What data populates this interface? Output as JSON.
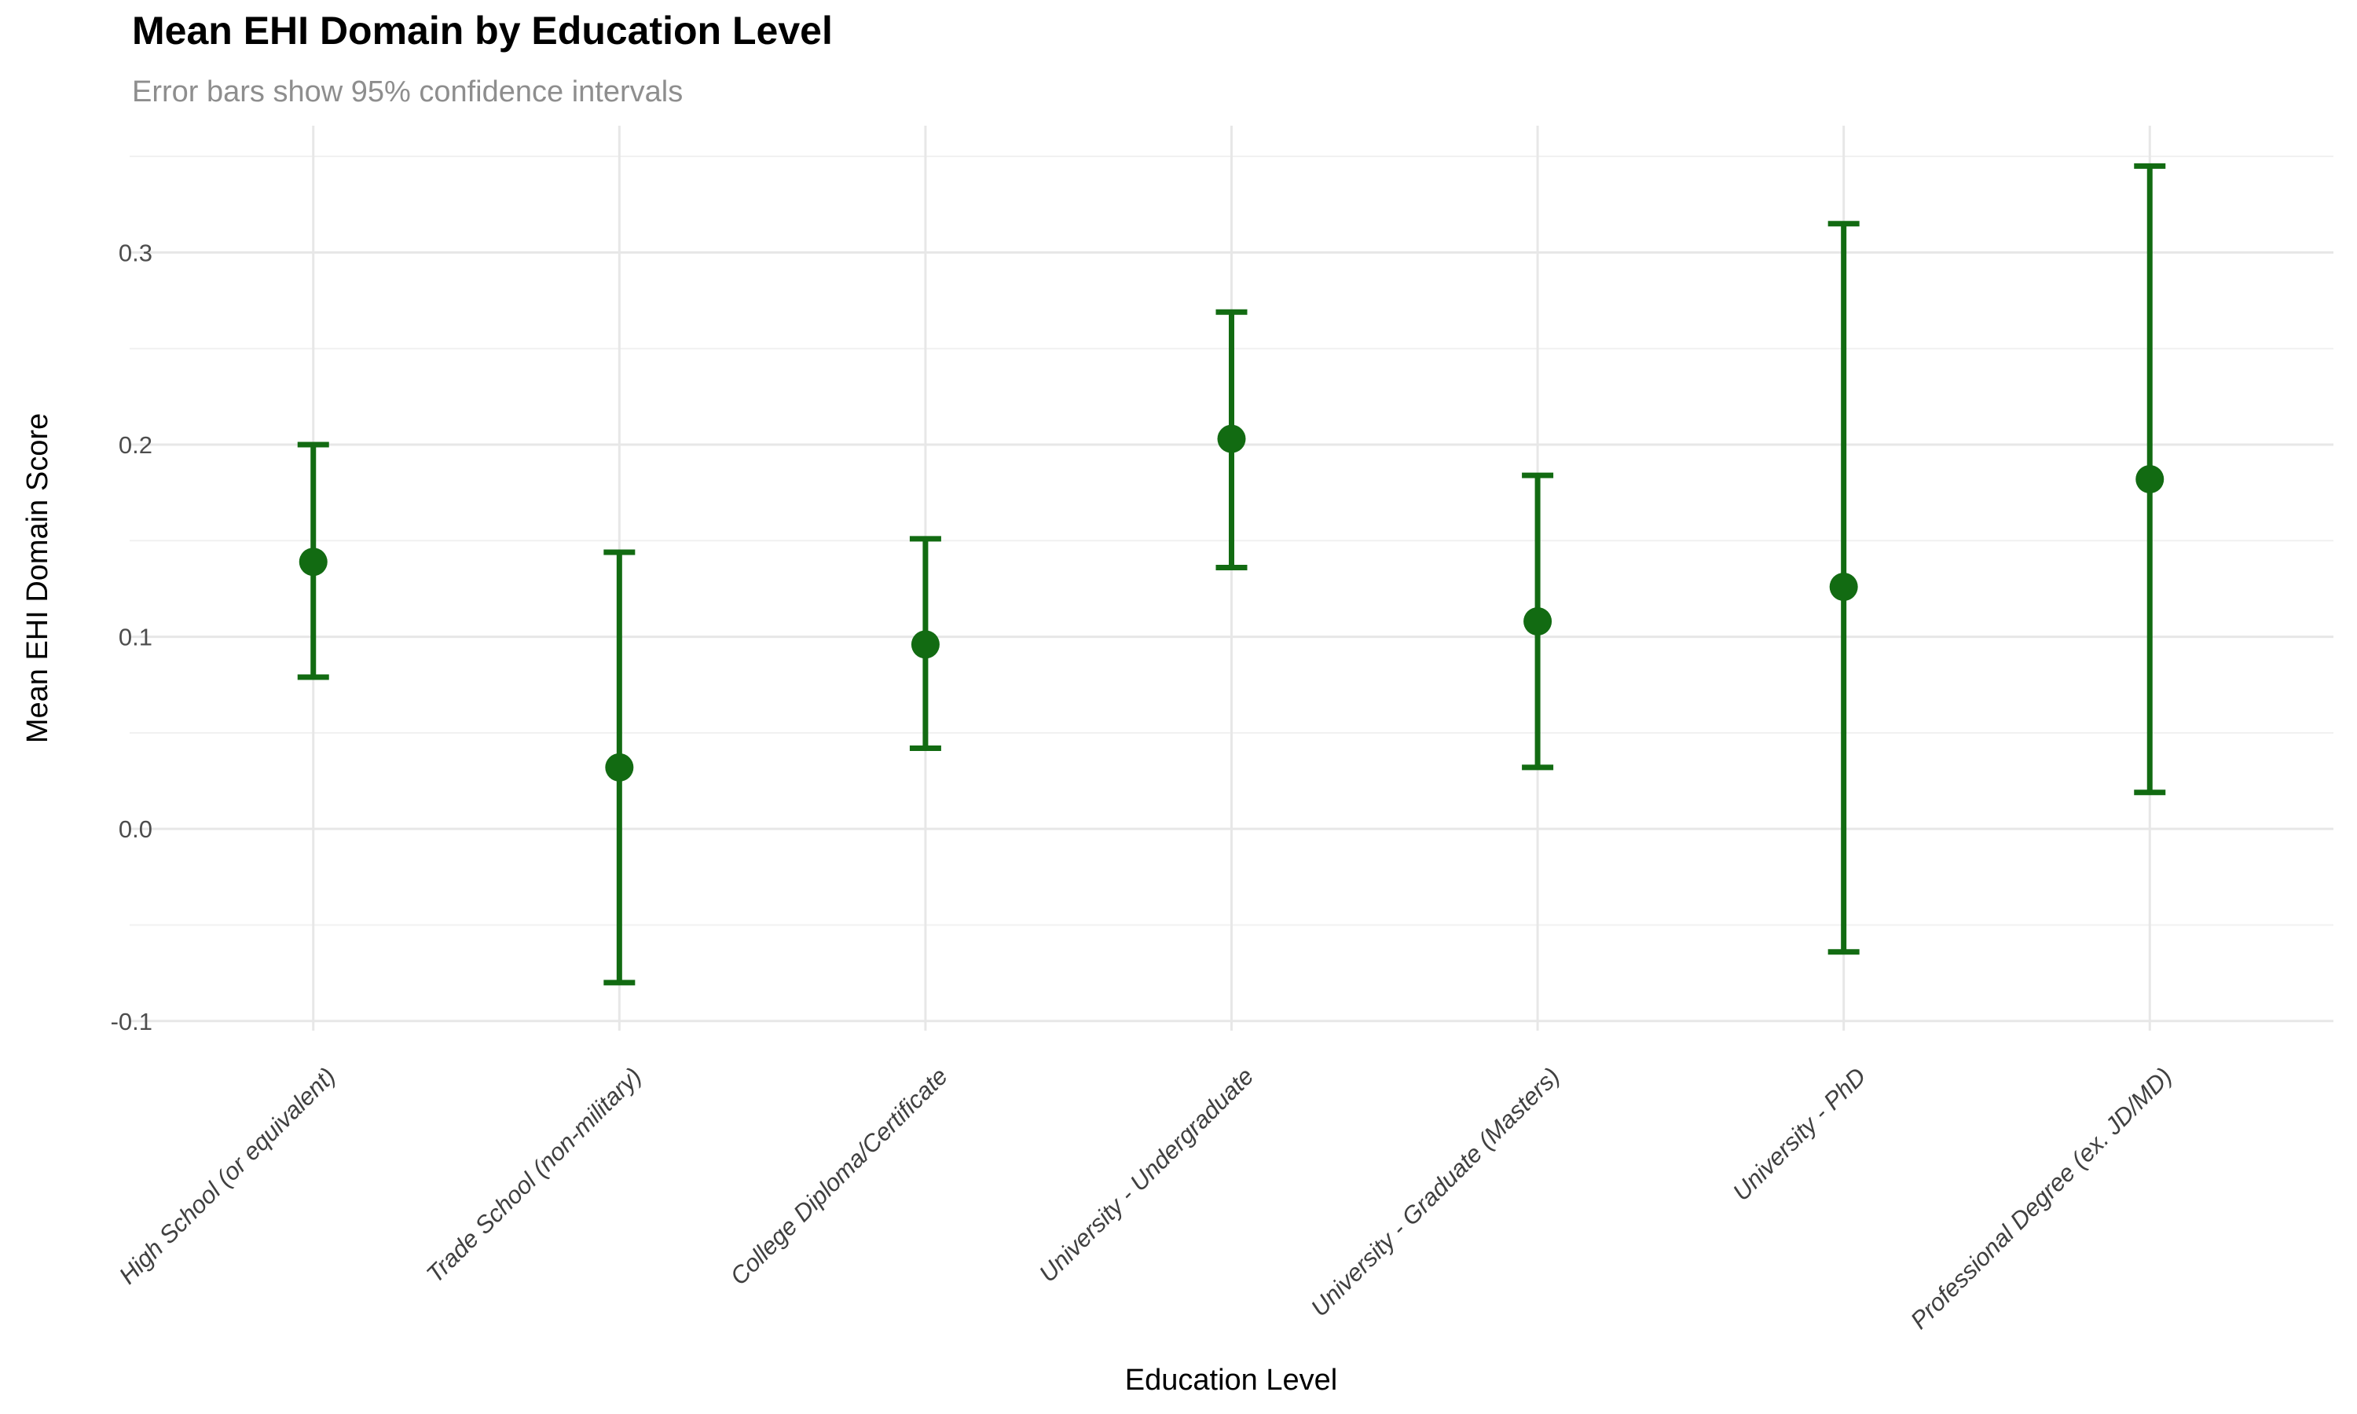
{
  "chart_data": {
    "type": "errorbar",
    "title": "Mean EHI Domain by Education Level",
    "subtitle": "Error bars show 95% confidence intervals",
    "xlabel": "Education Level",
    "ylabel": "Mean EHI Domain Score",
    "categories": [
      "High School (or equivalent)",
      "Trade School (non-military)",
      "College Diploma/Certificate",
      "University - Undergraduate",
      "University - Graduate (Masters)",
      "University - PhD",
      "Professional Degree (ex. JD/MD)"
    ],
    "series": [
      {
        "name": "Mean EHI Domain Score",
        "means": [
          0.139,
          0.032,
          0.096,
          0.203,
          0.108,
          0.126,
          0.182
        ],
        "ci_low": [
          0.079,
          -0.08,
          0.042,
          0.136,
          0.032,
          -0.064,
          0.019
        ],
        "ci_high": [
          0.2,
          0.144,
          0.151,
          0.269,
          0.184,
          0.315,
          0.345
        ]
      }
    ],
    "yticks": [
      {
        "value": 0.3,
        "label": "0.3"
      },
      {
        "value": 0.2,
        "label": "0.2"
      },
      {
        "value": 0.1,
        "label": "0.1"
      },
      {
        "value": 0.0,
        "label": "0.0"
      },
      {
        "value": -0.1,
        "label": "-0.1"
      }
    ],
    "yticks_minor": [
      0.35,
      0.25,
      0.15,
      0.05,
      -0.05
    ],
    "ylim": [
      -0.105,
      0.366
    ],
    "grid": true,
    "legend": "none",
    "colors": {
      "point": "#126b12",
      "grid_major": "#e7e7e7",
      "grid_minor": "#f1f1f1",
      "tick_text": "#4d4d4d",
      "x_tick_text": "#404040",
      "subtitle_text": "#8e8e8e",
      "background": "#ffffff"
    }
  }
}
